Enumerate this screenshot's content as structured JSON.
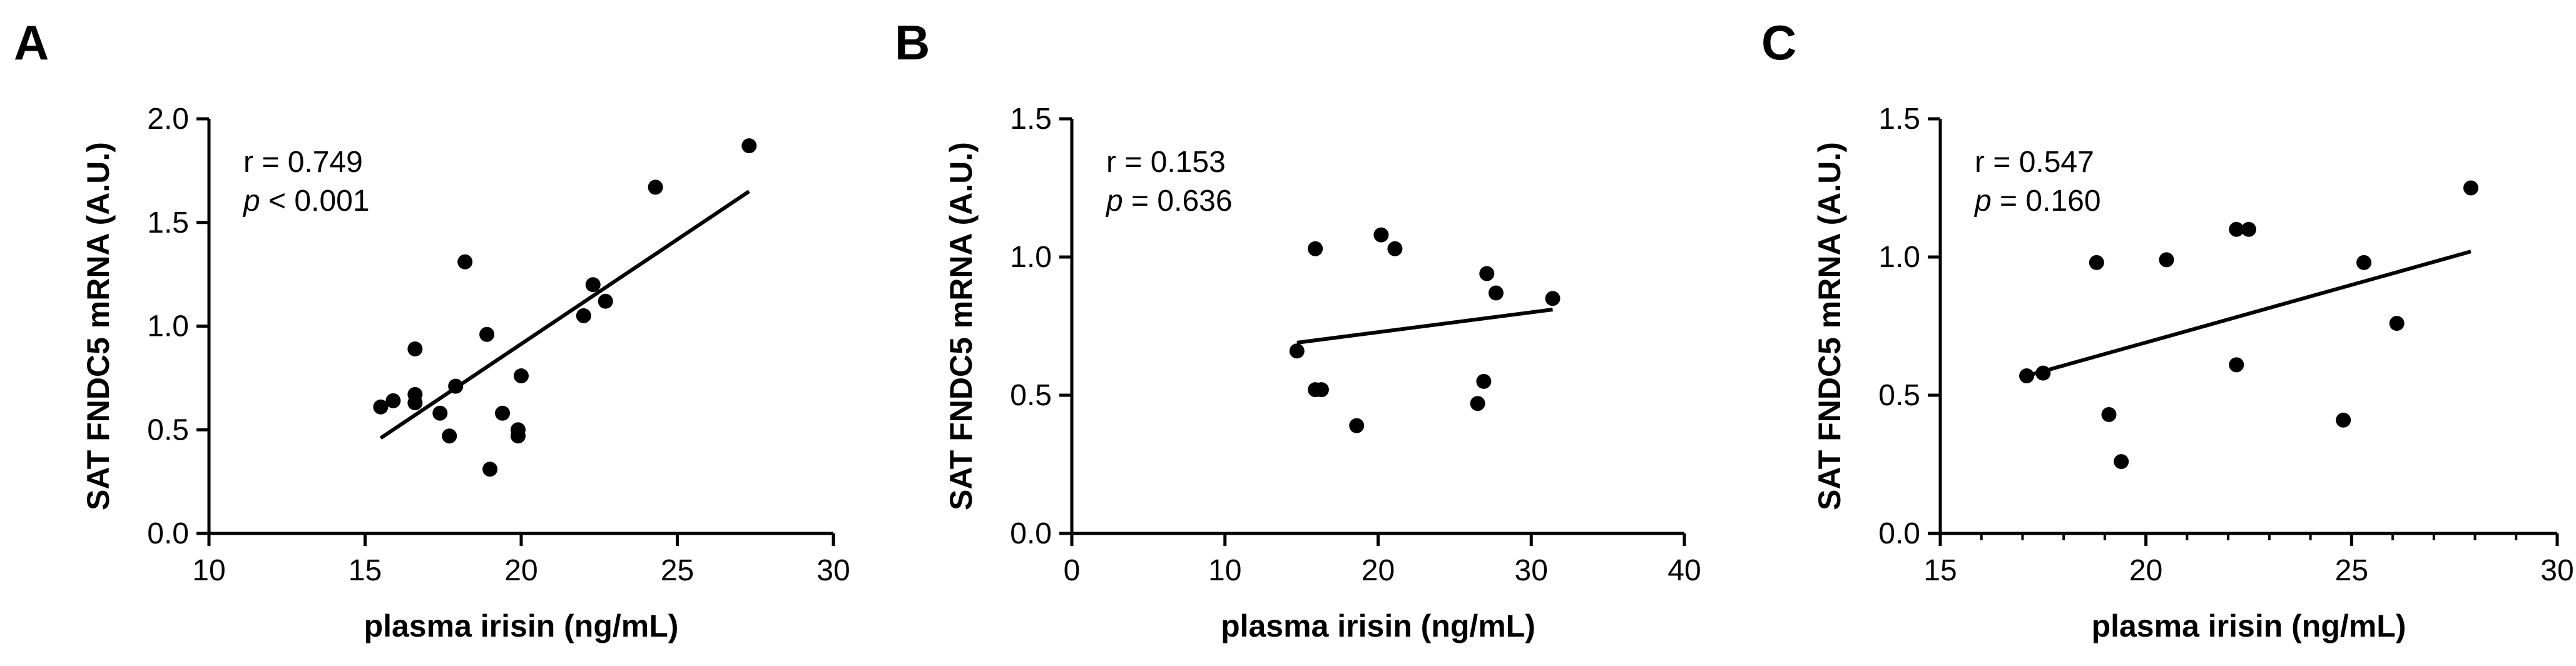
{
  "figure": {
    "chart_data": [
      {
        "type": "scatter",
        "panel_label": "A",
        "xlabel": "plasma irisin (ng/mL)",
        "ylabel": "SAT FNDC5 mRNA (A.U.)",
        "xlim": [
          10,
          30
        ],
        "ylim": [
          0.0,
          2.0
        ],
        "x_ticks": [
          10,
          15,
          20,
          25,
          30
        ],
        "x_tick_labels": [
          "10",
          "15",
          "20",
          "25",
          "30"
        ],
        "y_ticks": [
          0.0,
          0.5,
          1.0,
          1.5,
          2.0
        ],
        "y_tick_labels": [
          "0.0",
          "0.5",
          "1.0",
          "1.5",
          "2.0"
        ],
        "x_minor_ticks": false,
        "stats": {
          "r": "r = 0.749",
          "p_symbol": "p",
          "p_rest": " < 0.001"
        },
        "points": [
          {
            "x": 15.5,
            "y": 0.61
          },
          {
            "x": 15.9,
            "y": 0.64
          },
          {
            "x": 16.6,
            "y": 0.89
          },
          {
            "x": 16.6,
            "y": 0.67
          },
          {
            "x": 16.6,
            "y": 0.63
          },
          {
            "x": 17.4,
            "y": 0.58
          },
          {
            "x": 17.7,
            "y": 0.47
          },
          {
            "x": 17.9,
            "y": 0.71
          },
          {
            "x": 18.2,
            "y": 1.31
          },
          {
            "x": 18.9,
            "y": 0.96
          },
          {
            "x": 19.0,
            "y": 0.31
          },
          {
            "x": 19.4,
            "y": 0.58
          },
          {
            "x": 19.9,
            "y": 0.5
          },
          {
            "x": 19.9,
            "y": 0.47
          },
          {
            "x": 20.0,
            "y": 0.76
          },
          {
            "x": 22.0,
            "y": 1.05
          },
          {
            "x": 22.3,
            "y": 1.2
          },
          {
            "x": 22.7,
            "y": 1.12
          },
          {
            "x": 24.3,
            "y": 1.67
          },
          {
            "x": 27.3,
            "y": 1.87
          }
        ],
        "fit_line": {
          "x": [
            15.5,
            27.3
          ],
          "y": [
            0.46,
            1.65
          ]
        }
      },
      {
        "type": "scatter",
        "panel_label": "B",
        "xlabel": "plasma irisin (ng/mL)",
        "ylabel": "SAT FNDC5 mRNA (A.U.)",
        "xlim": [
          0,
          40
        ],
        "ylim": [
          0.0,
          1.5
        ],
        "x_ticks": [
          0,
          10,
          20,
          30,
          40
        ],
        "x_tick_labels": [
          "0",
          "10",
          "20",
          "30",
          "40"
        ],
        "y_ticks": [
          0.0,
          0.5,
          1.0,
          1.5
        ],
        "y_tick_labels": [
          "0.0",
          "0.5",
          "1.0",
          "1.5"
        ],
        "x_minor_ticks": false,
        "stats": {
          "r": "r = 0.153",
          "p_symbol": "p",
          "p_rest": " = 0.636"
        },
        "points": [
          {
            "x": 14.7,
            "y": 0.66
          },
          {
            "x": 15.9,
            "y": 1.03
          },
          {
            "x": 15.9,
            "y": 0.52
          },
          {
            "x": 16.3,
            "y": 0.52
          },
          {
            "x": 18.6,
            "y": 0.39
          },
          {
            "x": 20.2,
            "y": 1.08
          },
          {
            "x": 21.1,
            "y": 1.03
          },
          {
            "x": 26.5,
            "y": 0.47
          },
          {
            "x": 26.9,
            "y": 0.55
          },
          {
            "x": 27.1,
            "y": 0.94
          },
          {
            "x": 27.7,
            "y": 0.87
          },
          {
            "x": 31.4,
            "y": 0.85
          }
        ],
        "fit_line": {
          "x": [
            14.7,
            31.4
          ],
          "y": [
            0.69,
            0.81
          ]
        }
      },
      {
        "type": "scatter",
        "panel_label": "C",
        "xlabel": "plasma irisin (ng/mL)",
        "ylabel": "SAT FNDC5 mRNA (A.U.)",
        "xlim": [
          15,
          30
        ],
        "ylim": [
          0.0,
          1.5
        ],
        "x_ticks": [
          15,
          20,
          25,
          30
        ],
        "x_tick_labels": [
          "15",
          "20",
          "25",
          "30"
        ],
        "y_ticks": [
          0.0,
          0.5,
          1.0,
          1.5
        ],
        "y_tick_labels": [
          "0.0",
          "0.5",
          "1.0",
          "1.5"
        ],
        "x_minor_ticks": true,
        "stats": {
          "r": "r = 0.547",
          "p_symbol": "p",
          "p_rest": " = 0.160"
        },
        "points": [
          {
            "x": 17.1,
            "y": 0.57
          },
          {
            "x": 17.5,
            "y": 0.58
          },
          {
            "x": 18.8,
            "y": 0.98
          },
          {
            "x": 19.1,
            "y": 0.43
          },
          {
            "x": 19.4,
            "y": 0.26
          },
          {
            "x": 20.5,
            "y": 0.99
          },
          {
            "x": 22.2,
            "y": 1.1
          },
          {
            "x": 22.2,
            "y": 0.61
          },
          {
            "x": 22.5,
            "y": 1.1
          },
          {
            "x": 24.8,
            "y": 0.41
          },
          {
            "x": 25.3,
            "y": 0.98
          },
          {
            "x": 26.1,
            "y": 0.76
          },
          {
            "x": 27.9,
            "y": 1.25
          }
        ],
        "fit_line": {
          "x": [
            17.1,
            27.9
          ],
          "y": [
            0.57,
            1.02
          ]
        }
      }
    ]
  }
}
